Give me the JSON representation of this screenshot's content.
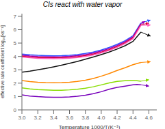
{
  "chart_data": {
    "type": "line",
    "title": "CIs react with water vapor",
    "xlabel": "Temperature  1000/T(K⁻¹)",
    "ylabel": "effective rate coefficient  log₁₀[ks⁻¹]",
    "xlim": [
      3.0,
      4.7
    ],
    "ylim": [
      0,
      7.2
    ],
    "xticks": [
      {
        "value": 3.0,
        "label": "3.0"
      },
      3.2,
      3.4,
      3.6,
      3.8,
      {
        "value": 4.0,
        "label": "4.0"
      },
      4.2,
      4.4,
      4.6
    ],
    "yticks": [
      0,
      1,
      2,
      3,
      4,
      5,
      6,
      7
    ],
    "series": [
      {
        "color": "#3355ff",
        "x": [
          3.0,
          3.1,
          3.2,
          3.3,
          3.4,
          3.5,
          3.6,
          3.7,
          3.8,
          3.9,
          4.0,
          4.1,
          4.2,
          4.3,
          4.4,
          4.5
        ],
        "values": [
          4.18,
          4.12,
          4.08,
          4.06,
          4.05,
          4.06,
          4.09,
          4.14,
          4.22,
          4.33,
          4.48,
          4.67,
          4.9,
          5.18,
          5.55,
          6.5
        ],
        "arrow": {
          "x0": 4.5,
          "y0": 6.5,
          "x1": 4.62,
          "y1": 6.72
        }
      },
      {
        "color": "#9900bb",
        "x": [
          3.0,
          3.1,
          3.2,
          3.3,
          3.4,
          3.5,
          3.6,
          3.7,
          3.8,
          3.9,
          4.0,
          4.1,
          4.2,
          4.3,
          4.4,
          4.5
        ],
        "values": [
          4.1,
          4.04,
          4.0,
          3.98,
          3.97,
          3.98,
          4.01,
          4.06,
          4.14,
          4.25,
          4.4,
          4.59,
          4.82,
          5.1,
          5.47,
          6.45
        ],
        "arrow": {
          "x0": 4.5,
          "y0": 6.45,
          "x1": 4.55,
          "y1": 6.62
        }
      },
      {
        "color": "#dd0033",
        "x": [
          3.0,
          3.1,
          3.2,
          3.3,
          3.4,
          3.5,
          3.6,
          3.7,
          3.8,
          3.9,
          4.0,
          4.1,
          4.2,
          4.3,
          4.4,
          4.5
        ],
        "values": [
          4.02,
          3.96,
          3.92,
          3.9,
          3.89,
          3.9,
          3.93,
          3.98,
          4.06,
          4.17,
          4.32,
          4.51,
          4.74,
          5.02,
          5.39,
          6.38
        ],
        "arrow": {
          "x0": 4.5,
          "y0": 6.38,
          "x1": 4.6,
          "y1": 6.48
        }
      },
      {
        "color": "#ff55bb",
        "x": [
          3.0,
          3.1,
          3.2,
          3.3,
          3.4,
          3.5,
          3.6,
          3.7,
          3.8,
          3.9,
          4.0,
          4.1,
          4.2,
          4.3,
          4.4,
          4.5
        ],
        "values": [
          3.96,
          3.9,
          3.86,
          3.84,
          3.83,
          3.84,
          3.87,
          3.92,
          4.0,
          4.11,
          4.26,
          4.45,
          4.68,
          4.96,
          5.33,
          6.32
        ],
        "arrow": {
          "x0": 4.5,
          "y0": 6.32,
          "x1": 4.62,
          "y1": 6.35
        }
      },
      {
        "color": "#111111",
        "x": [
          3.0,
          3.1,
          3.2,
          3.3,
          3.4,
          3.5,
          3.6,
          3.7,
          3.8,
          3.9,
          4.0,
          4.1,
          4.2,
          4.3,
          4.4,
          4.5
        ],
        "values": [
          2.82,
          2.9,
          3.0,
          3.1,
          3.22,
          3.35,
          3.49,
          3.63,
          3.79,
          3.96,
          4.14,
          4.33,
          4.55,
          4.8,
          5.12,
          5.82
        ],
        "arrow": {
          "x0": 4.5,
          "y0": 5.82,
          "x1": 4.62,
          "y1": 5.52
        }
      },
      {
        "color": "#ff8800",
        "x": [
          3.0,
          3.1,
          3.2,
          3.3,
          3.4,
          3.5,
          3.6,
          3.7,
          3.8,
          3.9,
          4.0,
          4.1,
          4.2,
          4.3,
          4.4,
          4.5
        ],
        "values": [
          2.2,
          2.12,
          2.07,
          2.04,
          2.03,
          2.04,
          2.07,
          2.13,
          2.22,
          2.35,
          2.52,
          2.72,
          2.95,
          3.15,
          3.38,
          3.55
        ],
        "arrow": {
          "x0": 4.5,
          "y0": 3.55,
          "x1": 4.62,
          "y1": 3.6
        }
      },
      {
        "color": "#88dd00",
        "x": [
          3.0,
          3.1,
          3.2,
          3.3,
          3.4,
          3.5,
          3.6,
          3.7,
          3.8,
          3.9,
          4.0,
          4.1,
          4.2,
          4.3,
          4.35,
          4.4,
          4.45,
          4.5
        ],
        "values": [
          1.65,
          1.57,
          1.52,
          1.49,
          1.47,
          1.47,
          1.5,
          1.55,
          1.62,
          1.73,
          1.87,
          2.02,
          2.13,
          2.18,
          2.2,
          2.2,
          2.18,
          2.15
        ],
        "arrow": {
          "x0": 4.5,
          "y0": 2.15,
          "x1": 4.6,
          "y1": 2.25
        }
      },
      {
        "color": "#7700bb",
        "x": [
          3.0,
          3.1,
          3.2,
          3.3,
          3.4,
          3.5,
          3.6,
          3.7,
          3.8,
          3.9,
          4.0,
          4.1,
          4.2,
          4.3,
          4.4,
          4.45,
          4.5
        ],
        "values": [
          1.12,
          1.04,
          0.99,
          0.96,
          0.94,
          0.94,
          0.97,
          1.02,
          1.1,
          1.21,
          1.36,
          1.54,
          1.68,
          1.78,
          1.88,
          1.9,
          1.88
        ],
        "arrow": {
          "x0": 4.5,
          "y0": 1.88,
          "x1": 4.6,
          "y1": 1.78
        }
      }
    ]
  }
}
